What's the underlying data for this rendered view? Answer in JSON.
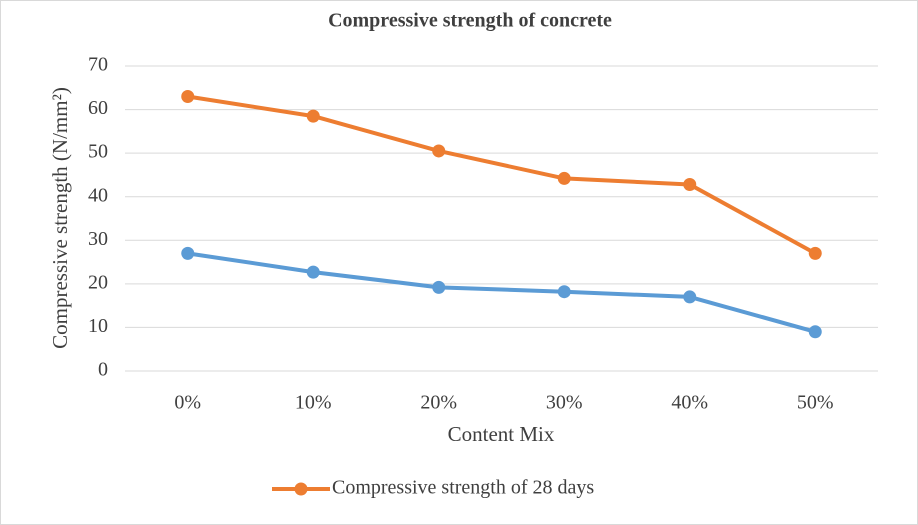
{
  "chart_data": {
    "type": "line",
    "title": "Compressive strength of concrete",
    "x_label": "Content Mix",
    "y_label": "Compressive strength (N/mm²)",
    "categories": [
      "0%",
      "10%",
      "20%",
      "30%",
      "40%",
      "50%"
    ],
    "series": [
      {
        "name": "Compressive strength of 28 days",
        "color": "#ed7d31",
        "values": [
          63,
          58.5,
          50.5,
          44.2,
          42.8,
          27
        ]
      },
      {
        "color": "#5b9bd5",
        "values": [
          27,
          22.7,
          19.2,
          18.2,
          17,
          9
        ]
      }
    ],
    "ylim": [
      0,
      70
    ],
    "yticks": [
      0,
      10,
      20,
      30,
      40,
      50,
      60,
      70
    ],
    "grid": true,
    "legend": "bottom"
  }
}
